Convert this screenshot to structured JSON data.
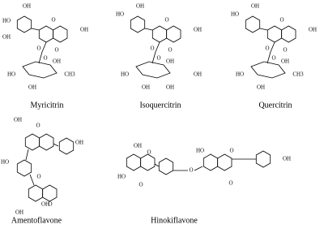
{
  "molecules": [
    {
      "name": "Myricitrin",
      "atoms": [
        "OH",
        "HO",
        "OH",
        "O",
        "OH",
        "O",
        "O",
        "OH",
        "O",
        "HO",
        "OH",
        "CH3"
      ]
    },
    {
      "name": "Isoquercitrin",
      "atoms": [
        "OH",
        "HO",
        "O",
        "OH",
        "O",
        "O",
        "OH",
        "O",
        "HO",
        "OH",
        "OH",
        "OH"
      ]
    },
    {
      "name": "Quercitrin",
      "atoms": [
        "OH",
        "HO",
        "O",
        "OH",
        "O",
        "O",
        "OH",
        "O",
        "HO",
        "OH",
        "CH3"
      ]
    },
    {
      "name": "Amentoflavone",
      "atoms": [
        "OH",
        "O",
        "HO",
        "O",
        "OH",
        "O",
        "OH",
        "OH"
      ]
    },
    {
      "name": "Hinokiflavone",
      "atoms": [
        "OH",
        "O",
        "HO",
        "O",
        "O",
        "HO",
        "O",
        "O",
        "OH"
      ]
    }
  ]
}
